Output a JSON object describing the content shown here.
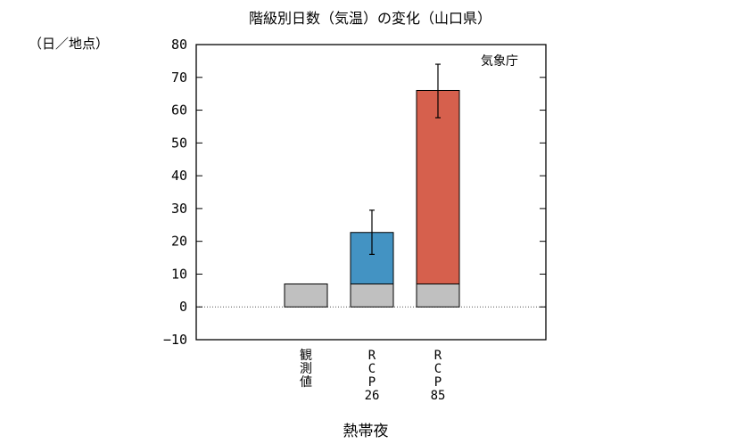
{
  "chart_data": {
    "type": "bar",
    "title": "階級別日数（気温）の変化（山口県）",
    "ylabel": "（日／地点）",
    "xlabel": "熱帯夜",
    "source": "気象庁",
    "ylim": [
      -10,
      80
    ],
    "yticks": [
      -10,
      0,
      10,
      20,
      30,
      40,
      50,
      60,
      70,
      80
    ],
    "ytick_labels": [
      "−10",
      "0",
      "10",
      "20",
      "30",
      "40",
      "50",
      "60",
      "70",
      "80"
    ],
    "categories": [
      "観測値",
      "RCP26",
      "RCP85"
    ],
    "category_label_lines": [
      [
        "観",
        "測",
        "値"
      ],
      [
        "R",
        "C",
        "P",
        "26"
      ],
      [
        "R",
        "C",
        "P",
        "85"
      ]
    ],
    "baseline": 7,
    "series": [
      {
        "values": [
          7,
          7,
          7
        ],
        "color": "#c0c0c0"
      },
      {
        "values": [
          0,
          15.7,
          59
        ],
        "color": "#4393c3",
        "colors": [
          "#4393c3",
          "#4393c3",
          "#d6604d"
        ]
      }
    ],
    "totals": [
      7,
      22.7,
      65.9
    ],
    "error_bars": [
      null,
      [
        16,
        29.5
      ],
      [
        57.7,
        74
      ]
    ],
    "grid": false,
    "zero_line": "dotted"
  }
}
